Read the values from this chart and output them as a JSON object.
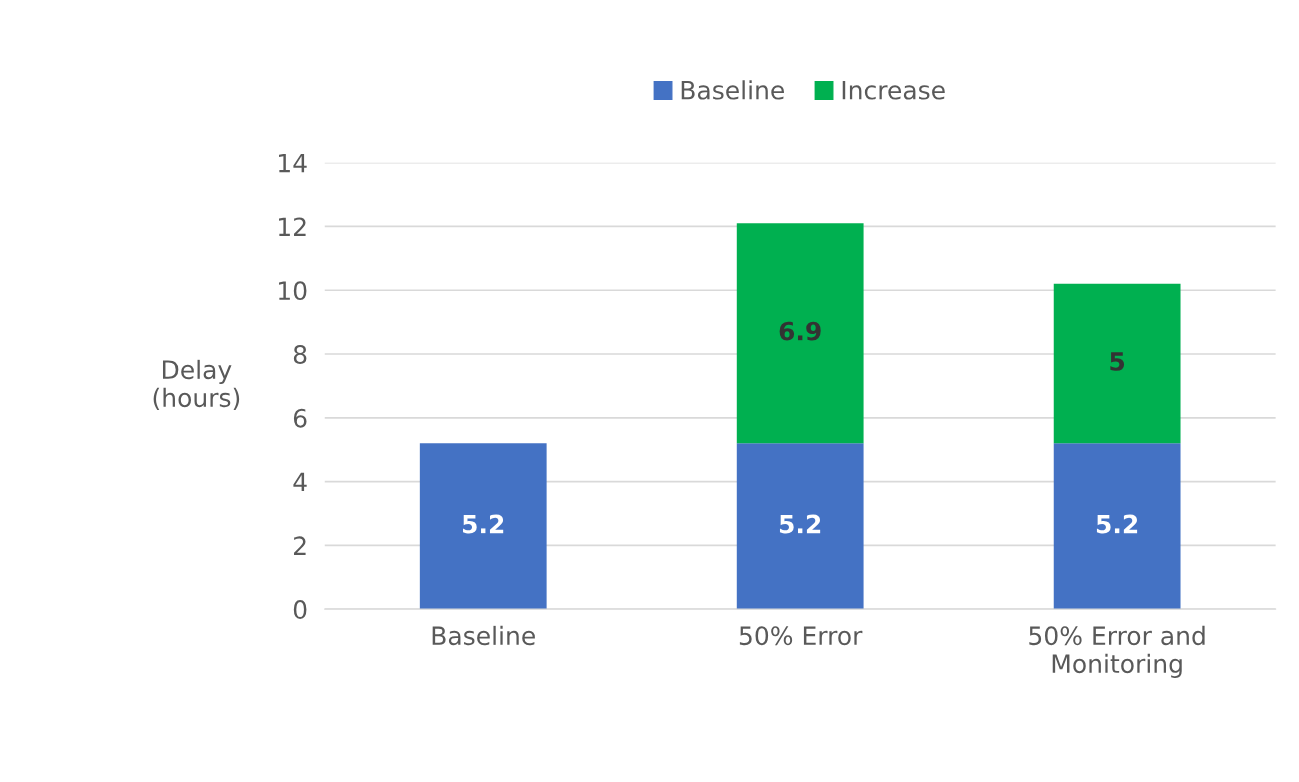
{
  "chart_data": {
    "type": "bar",
    "stacked": true,
    "ylabel": "Delay\n(hours)",
    "categories": [
      "Baseline",
      "50% Error",
      "50% Error and\nMonitoring"
    ],
    "series": [
      {
        "name": "Baseline",
        "color": "#4472c4",
        "values": [
          5.2,
          5.2,
          5.2
        ]
      },
      {
        "name": "Increase",
        "color": "#00b050",
        "values": [
          null,
          6.9,
          5
        ]
      }
    ],
    "ylim": [
      0,
      14
    ],
    "yticks": [
      0,
      2,
      4,
      6,
      8,
      10,
      12,
      14
    ],
    "grid": "y",
    "legend": "top",
    "data_labels": true
  }
}
